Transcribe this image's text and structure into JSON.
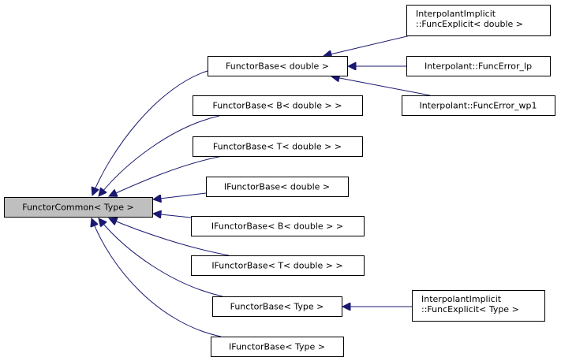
{
  "diagram": {
    "edge_color": "#191970",
    "base_fill": "#bfbfbf",
    "nodes": {
      "functor_common": {
        "lines": [
          "FunctorCommon< Type >"
        ]
      },
      "functor_base_double": {
        "lines": [
          "FunctorBase< double >"
        ]
      },
      "functor_base_b_double": {
        "lines": [
          "FunctorBase< B< double > >"
        ]
      },
      "functor_base_t_double": {
        "lines": [
          "FunctorBase< T< double > >"
        ]
      },
      "ifunctor_base_double": {
        "lines": [
          "IFunctorBase< double >"
        ]
      },
      "ifunctor_base_b_double": {
        "lines": [
          "IFunctorBase< B< double > >"
        ]
      },
      "ifunctor_base_t_double": {
        "lines": [
          "IFunctorBase< T< double > >"
        ]
      },
      "functor_base_type": {
        "lines": [
          "FunctorBase< Type >"
        ]
      },
      "ifunctor_base_type": {
        "lines": [
          "IFunctorBase< Type >"
        ]
      },
      "func_explicit_double": {
        "lines": [
          "InterpolantImplicit",
          "::FuncExplicit< double >"
        ]
      },
      "func_error_lp": {
        "lines": [
          "Interpolant::FuncError_lp"
        ]
      },
      "func_error_wp1": {
        "lines": [
          "Interpolant::FuncError_wp1"
        ]
      },
      "func_explicit_type": {
        "lines": [
          "InterpolantImplicit",
          "::FuncExplicit< Type >"
        ]
      }
    },
    "edges": [
      {
        "from": "functor_base_double",
        "to": "functor_common"
      },
      {
        "from": "functor_base_b_double",
        "to": "functor_common"
      },
      {
        "from": "functor_base_t_double",
        "to": "functor_common"
      },
      {
        "from": "ifunctor_base_double",
        "to": "functor_common"
      },
      {
        "from": "ifunctor_base_b_double",
        "to": "functor_common"
      },
      {
        "from": "ifunctor_base_t_double",
        "to": "functor_common"
      },
      {
        "from": "functor_base_type",
        "to": "functor_common"
      },
      {
        "from": "ifunctor_base_type",
        "to": "functor_common"
      },
      {
        "from": "func_explicit_double",
        "to": "functor_base_double"
      },
      {
        "from": "func_error_lp",
        "to": "functor_base_double"
      },
      {
        "from": "func_error_wp1",
        "to": "functor_base_double"
      },
      {
        "from": "func_explicit_type",
        "to": "functor_base_type"
      }
    ]
  }
}
